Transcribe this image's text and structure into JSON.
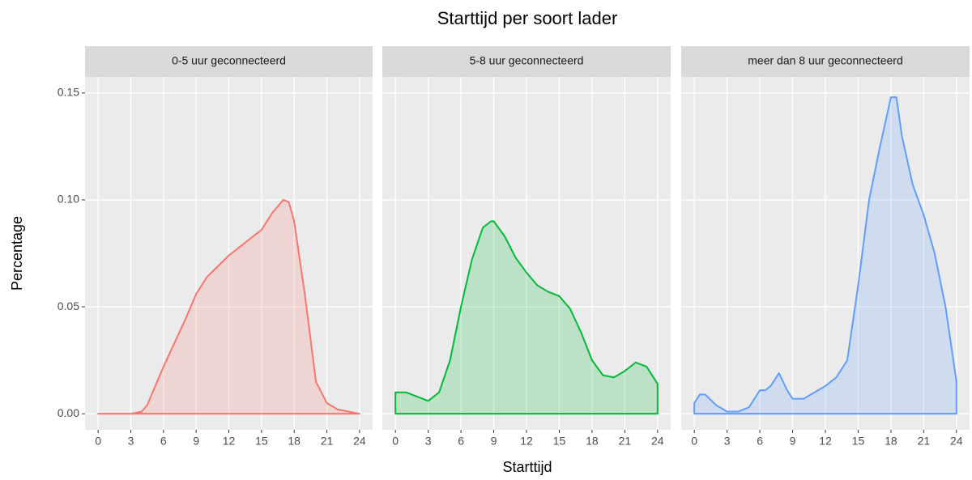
{
  "title": "Starttijd per soort lader",
  "xlabel": "Starttijd",
  "ylabel": "Percentage",
  "chart_data": [
    {
      "type": "area",
      "title": "0-5 uur geconnecteerd",
      "color": "#F8766D",
      "x": [
        0,
        1,
        2,
        3,
        4,
        4.5,
        5,
        6,
        7,
        8,
        9,
        10,
        11,
        12,
        13,
        14,
        15,
        16,
        17,
        17.5,
        18,
        19,
        20,
        21,
        22,
        23,
        24
      ],
      "values": [
        0,
        0,
        0,
        0,
        0.001,
        0.004,
        0.01,
        0.022,
        0.033,
        0.044,
        0.056,
        0.064,
        0.069,
        0.074,
        0.078,
        0.082,
        0.086,
        0.094,
        0.1,
        0.099,
        0.09,
        0.055,
        0.015,
        0.005,
        0.002,
        0.001,
        0
      ],
      "xlim": [
        -1.2,
        25.2
      ],
      "ylim": [
        -0.0075,
        0.1575
      ],
      "xticks": [
        0,
        3,
        6,
        9,
        12,
        15,
        18,
        21,
        24
      ],
      "yticks": [
        {
          "value": 0,
          "label": "0.00"
        },
        0.05,
        {
          "value": 0.1,
          "label": "0.10"
        },
        0.15
      ],
      "grid": true
    },
    {
      "type": "area",
      "title": "5-8 uur geconnecteerd",
      "color": "#00BA38",
      "x": [
        0,
        1,
        2,
        3,
        4,
        5,
        6,
        7,
        8,
        8.75,
        9,
        10,
        11,
        12,
        13,
        14,
        15,
        16,
        17,
        18,
        19,
        20,
        21,
        22,
        23,
        24
      ],
      "values": [
        0.01,
        0.01,
        0.008,
        0.006,
        0.01,
        0.025,
        0.05,
        0.072,
        0.087,
        0.09,
        0.09,
        0.083,
        0.073,
        0.066,
        0.06,
        0.057,
        0.055,
        0.049,
        0.038,
        0.025,
        0.018,
        0.017,
        0.02,
        0.024,
        0.022,
        0.014
      ],
      "xlim": [
        -1.2,
        25.2
      ],
      "ylim": [
        -0.0075,
        0.1575
      ],
      "xticks": [
        0,
        3,
        6,
        9,
        12,
        15,
        18,
        21,
        24
      ],
      "yticks": [
        {
          "value": 0,
          "label": "0.00"
        },
        0.05,
        {
          "value": 0.1,
          "label": "0.10"
        },
        0.15
      ],
      "grid": true
    },
    {
      "type": "area",
      "title": "meer dan 8 uur geconnecteerd",
      "color": "#619CFF",
      "x": [
        0,
        0.5,
        1,
        2,
        3,
        4,
        5,
        6,
        6.5,
        7,
        7.75,
        8.5,
        9,
        10,
        11,
        12,
        13,
        14,
        15,
        16,
        17,
        18,
        18.5,
        19,
        20,
        21,
        22,
        23,
        24
      ],
      "values": [
        0.005,
        0.009,
        0.009,
        0.004,
        0.001,
        0.001,
        0.003,
        0.011,
        0.011,
        0.013,
        0.019,
        0.011,
        0.007,
        0.007,
        0.01,
        0.013,
        0.017,
        0.025,
        0.06,
        0.1,
        0.125,
        0.148,
        0.148,
        0.13,
        0.107,
        0.093,
        0.075,
        0.05,
        0.015
      ],
      "xlim": [
        -1.2,
        25.2
      ],
      "ylim": [
        -0.0075,
        0.1575
      ],
      "xticks": [
        0,
        3,
        6,
        9,
        12,
        15,
        18,
        21,
        24
      ],
      "yticks": [
        {
          "value": 0,
          "label": "0.00"
        },
        0.05,
        {
          "value": 0.1,
          "label": "0.10"
        },
        0.15
      ],
      "grid": true
    }
  ]
}
